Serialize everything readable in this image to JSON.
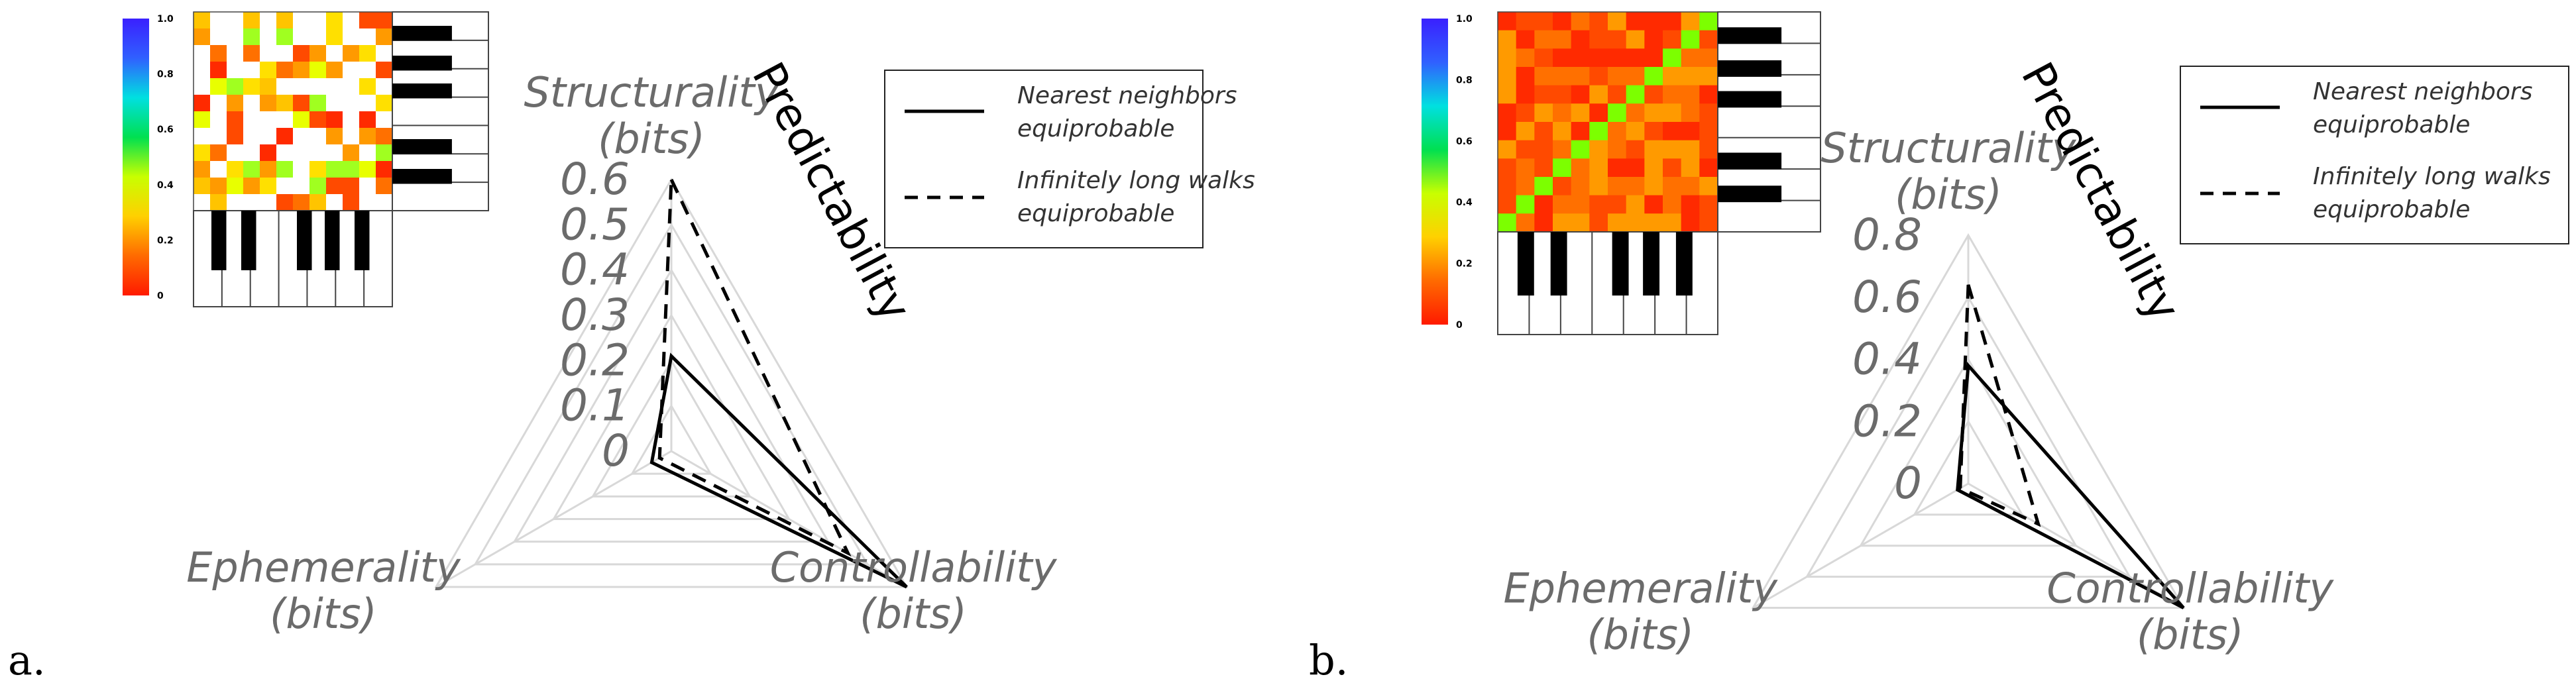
{
  "colors": {
    "grid": "#d8d8d8",
    "axis_text": "#6b6b6b",
    "series_solid": "#000000",
    "series_dashed": "#000000",
    "colormap": [
      "#ff1a00",
      "#ff6a00",
      "#ffd000",
      "#c8ff00",
      "#00e050",
      "#00e0e0",
      "#3060ff",
      "#3a20ff"
    ]
  },
  "chart_data": [
    {
      "type": "radar",
      "panel_label": "a.",
      "axes": [
        {
          "key": "structurality",
          "line1": "Structurality",
          "line2": "(bits)"
        },
        {
          "key": "controllability",
          "line1": "Controllability",
          "line2": "(bits)"
        },
        {
          "key": "ephemerality",
          "line1": "Ephemerality",
          "line2": "(bits)"
        }
      ],
      "predictability_label": "Predictability",
      "rlim": [
        0,
        0.6
      ],
      "ticks": [
        "0",
        "0.1",
        "0.2",
        "0.3",
        "0.4",
        "0.5",
        "0.6"
      ],
      "legend": [
        "Nearest neighbors equiprobable",
        "Infinitely long walks equiprobable"
      ],
      "legend_lines": [
        [
          "Nearest neighbors",
          "equiprobable"
        ],
        [
          "Infinitely long walks",
          "equiprobable"
        ]
      ],
      "series": [
        {
          "style": "solid",
          "values": {
            "structurality": 0.21,
            "controllability": 0.6,
            "ephemerality": 0.05
          }
        },
        {
          "style": "dashed",
          "values": {
            "structurality": 0.6,
            "controllability": 0.45,
            "ephemerality": 0.03
          }
        }
      ],
      "inset": {
        "colorbar_ticks": [
          "1.0",
          "0.8",
          "0.6",
          "0.4",
          "0.2",
          "0"
        ],
        "matrix_size": 12,
        "diagonal": false
      }
    },
    {
      "type": "radar",
      "panel_label": "b.",
      "axes": [
        {
          "key": "structurality",
          "line1": "Structurality",
          "line2": "(bits)"
        },
        {
          "key": "controllability",
          "line1": "Controllability",
          "line2": "(bits)"
        },
        {
          "key": "ephemerality",
          "line1": "Ephemerality",
          "line2": "(bits)"
        }
      ],
      "predictability_label": "Predictability",
      "rlim": [
        0,
        0.8
      ],
      "ticks": [
        "0",
        "0.2",
        "0.4",
        "0.6",
        "0.8"
      ],
      "legend": [
        "Nearest neighbors equiprobable",
        "Infinitely long walks equiprobable"
      ],
      "legend_lines": [
        [
          "Nearest neighbors",
          "equiprobable"
        ],
        [
          "Infinitely long walks",
          "equiprobable"
        ]
      ],
      "series": [
        {
          "style": "solid",
          "values": {
            "structurality": 0.38,
            "controllability": 0.8,
            "ephemerality": 0.04
          }
        },
        {
          "style": "dashed",
          "values": {
            "structurality": 0.64,
            "controllability": 0.26,
            "ephemerality": 0.03
          }
        }
      ],
      "inset": {
        "colorbar_ticks": [
          "1.0",
          "0.8",
          "0.6",
          "0.4",
          "0.2",
          "0"
        ],
        "matrix_size": 12,
        "diagonal": true
      }
    }
  ]
}
